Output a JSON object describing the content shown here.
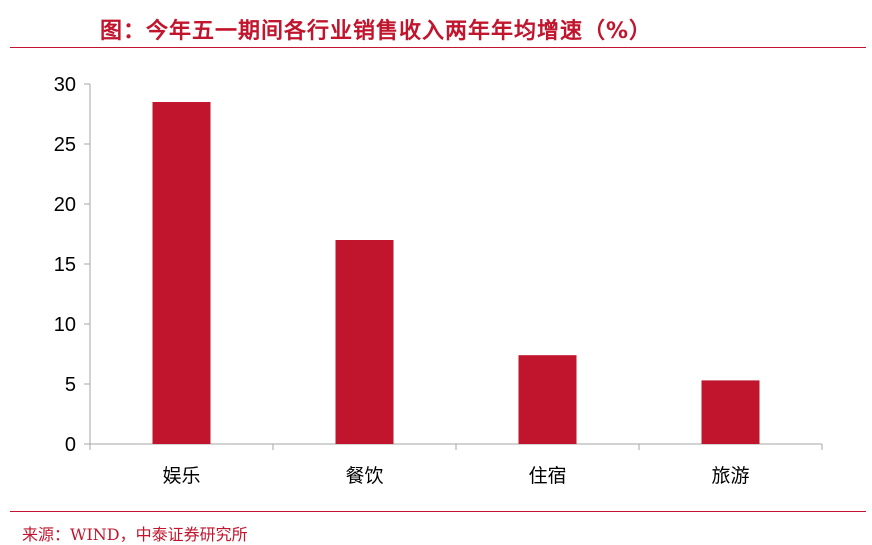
{
  "header": {
    "title": "图：今年五一期间各行业销售收入两年年均增速（%）"
  },
  "chart_data": {
    "type": "bar",
    "categories": [
      "娱乐",
      "餐饮",
      "住宿",
      "旅游"
    ],
    "series": [
      {
        "values": [
          28.5,
          17.0,
          7.4,
          5.3
        ]
      }
    ],
    "ylim": [
      0,
      30
    ],
    "yticks": [
      0,
      5,
      10,
      15,
      20,
      25,
      30
    ],
    "grid": false,
    "bar_color": "#c0152d",
    "axis_color": "#a6a6a6",
    "text_color": "#000000"
  },
  "footer": {
    "source": "来源：WIND，中泰证券研究所"
  },
  "colors": {
    "accent": "#c0152d"
  }
}
